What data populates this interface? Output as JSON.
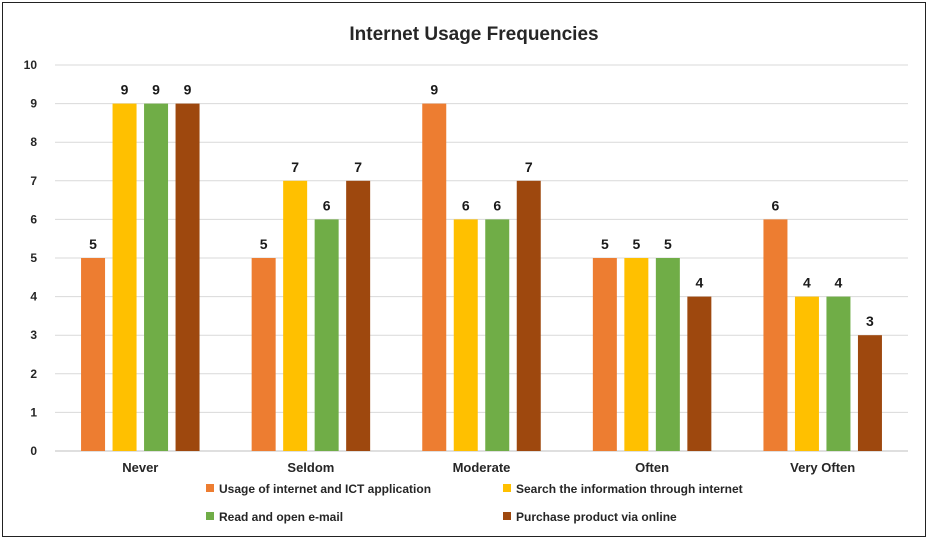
{
  "chart_data": {
    "type": "bar",
    "title": "Internet Usage Frequencies",
    "xlabel": "",
    "ylabel": "",
    "ylim": [
      0,
      10
    ],
    "yticks": [
      "0",
      "1",
      "2",
      "3",
      "4",
      "5",
      "6",
      "7",
      "8",
      "9",
      "10"
    ],
    "grid": true,
    "legend_position": "bottom",
    "categories": [
      "Never",
      "Seldom",
      "Moderate",
      "Often",
      "Very Often"
    ],
    "series": [
      {
        "name": "Usage of internet and ICT application",
        "color": "#ED7D31",
        "values": [
          5,
          5,
          9,
          5,
          6
        ]
      },
      {
        "name": "Search the information through internet",
        "color": "#FFC000",
        "values": [
          9,
          7,
          6,
          5,
          4
        ]
      },
      {
        "name": "Read and open e-mail",
        "color": "#70AD47",
        "values": [
          9,
          6,
          6,
          5,
          4
        ]
      },
      {
        "name": "Purchase product via online",
        "color": "#9E480E",
        "values": [
          9,
          7,
          7,
          4,
          3
        ]
      }
    ]
  }
}
